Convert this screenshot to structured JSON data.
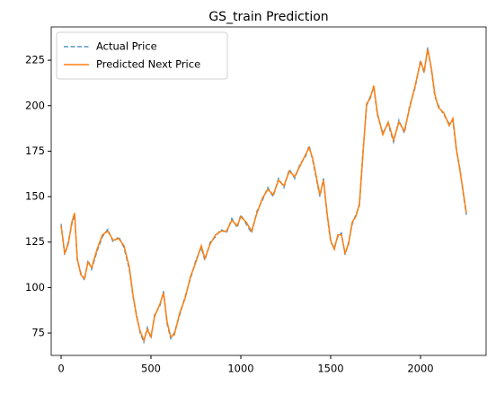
{
  "chart_data": {
    "type": "line",
    "title": "GS_train Prediction",
    "x": [
      0,
      20,
      40,
      60,
      75,
      90,
      110,
      130,
      150,
      170,
      200,
      230,
      260,
      290,
      320,
      350,
      380,
      400,
      420,
      440,
      460,
      480,
      500,
      520,
      550,
      570,
      590,
      610,
      630,
      660,
      690,
      720,
      750,
      780,
      800,
      830,
      860,
      890,
      920,
      950,
      980,
      1000,
      1030,
      1060,
      1090,
      1120,
      1150,
      1180,
      1210,
      1240,
      1270,
      1300,
      1330,
      1360,
      1380,
      1400,
      1420,
      1440,
      1460,
      1480,
      1500,
      1520,
      1540,
      1560,
      1580,
      1600,
      1620,
      1640,
      1660,
      1680,
      1700,
      1720,
      1740,
      1760,
      1790,
      1820,
      1850,
      1880,
      1910,
      1940,
      1970,
      2000,
      2020,
      2040,
      2060,
      2080,
      2100,
      2130,
      2160,
      2180,
      2200,
      2220,
      2240,
      2255
    ],
    "series": [
      {
        "name": "Actual Price",
        "color": "#1f77b4",
        "dash": true,
        "values": [
          135,
          118,
          125,
          135,
          140,
          115,
          108,
          104,
          115,
          110,
          120,
          128,
          132,
          125,
          128,
          122,
          110,
          95,
          85,
          75,
          70,
          78,
          72,
          85,
          90,
          98,
          80,
          72,
          75,
          85,
          95,
          105,
          115,
          122,
          115,
          125,
          128,
          132,
          130,
          138,
          133,
          140,
          135,
          130,
          142,
          148,
          155,
          150,
          160,
          155,
          165,
          160,
          168,
          172,
          178,
          170,
          160,
          150,
          160,
          140,
          125,
          122,
          128,
          130,
          118,
          125,
          135,
          140,
          145,
          175,
          200,
          205,
          210,
          195,
          185,
          190,
          180,
          192,
          185,
          200,
          210,
          225,
          218,
          232,
          220,
          205,
          200,
          195,
          190,
          192,
          175,
          165,
          150,
          140
        ]
      },
      {
        "name": "Predicted Next Price",
        "color": "#ff7f0e",
        "dash": false,
        "values": [
          134,
          119,
          124,
          136,
          141,
          116,
          107,
          105,
          114,
          111,
          121,
          129,
          131,
          126,
          127,
          123,
          111,
          96,
          84,
          76,
          71,
          77,
          73,
          84,
          91,
          97,
          81,
          73,
          74,
          86,
          94,
          106,
          114,
          123,
          116,
          124,
          129,
          131,
          131,
          137,
          134,
          139,
          136,
          131,
          141,
          149,
          154,
          151,
          159,
          156,
          164,
          161,
          167,
          173,
          177,
          171,
          161,
          151,
          159,
          141,
          126,
          121,
          129,
          129,
          119,
          124,
          136,
          139,
          146,
          174,
          201,
          204,
          211,
          196,
          184,
          191,
          181,
          191,
          186,
          199,
          211,
          224,
          219,
          231,
          221,
          206,
          199,
          196,
          189,
          193,
          176,
          164,
          151,
          141
        ]
      }
    ],
    "xlim": [
      -55,
      2365
    ],
    "ylim": [
      62.7,
      243.3
    ],
    "xticks": [
      0,
      500,
      1000,
      1500,
      2000
    ],
    "yticks": [
      75,
      100,
      125,
      150,
      175,
      200,
      225
    ],
    "legend": "upper left"
  }
}
